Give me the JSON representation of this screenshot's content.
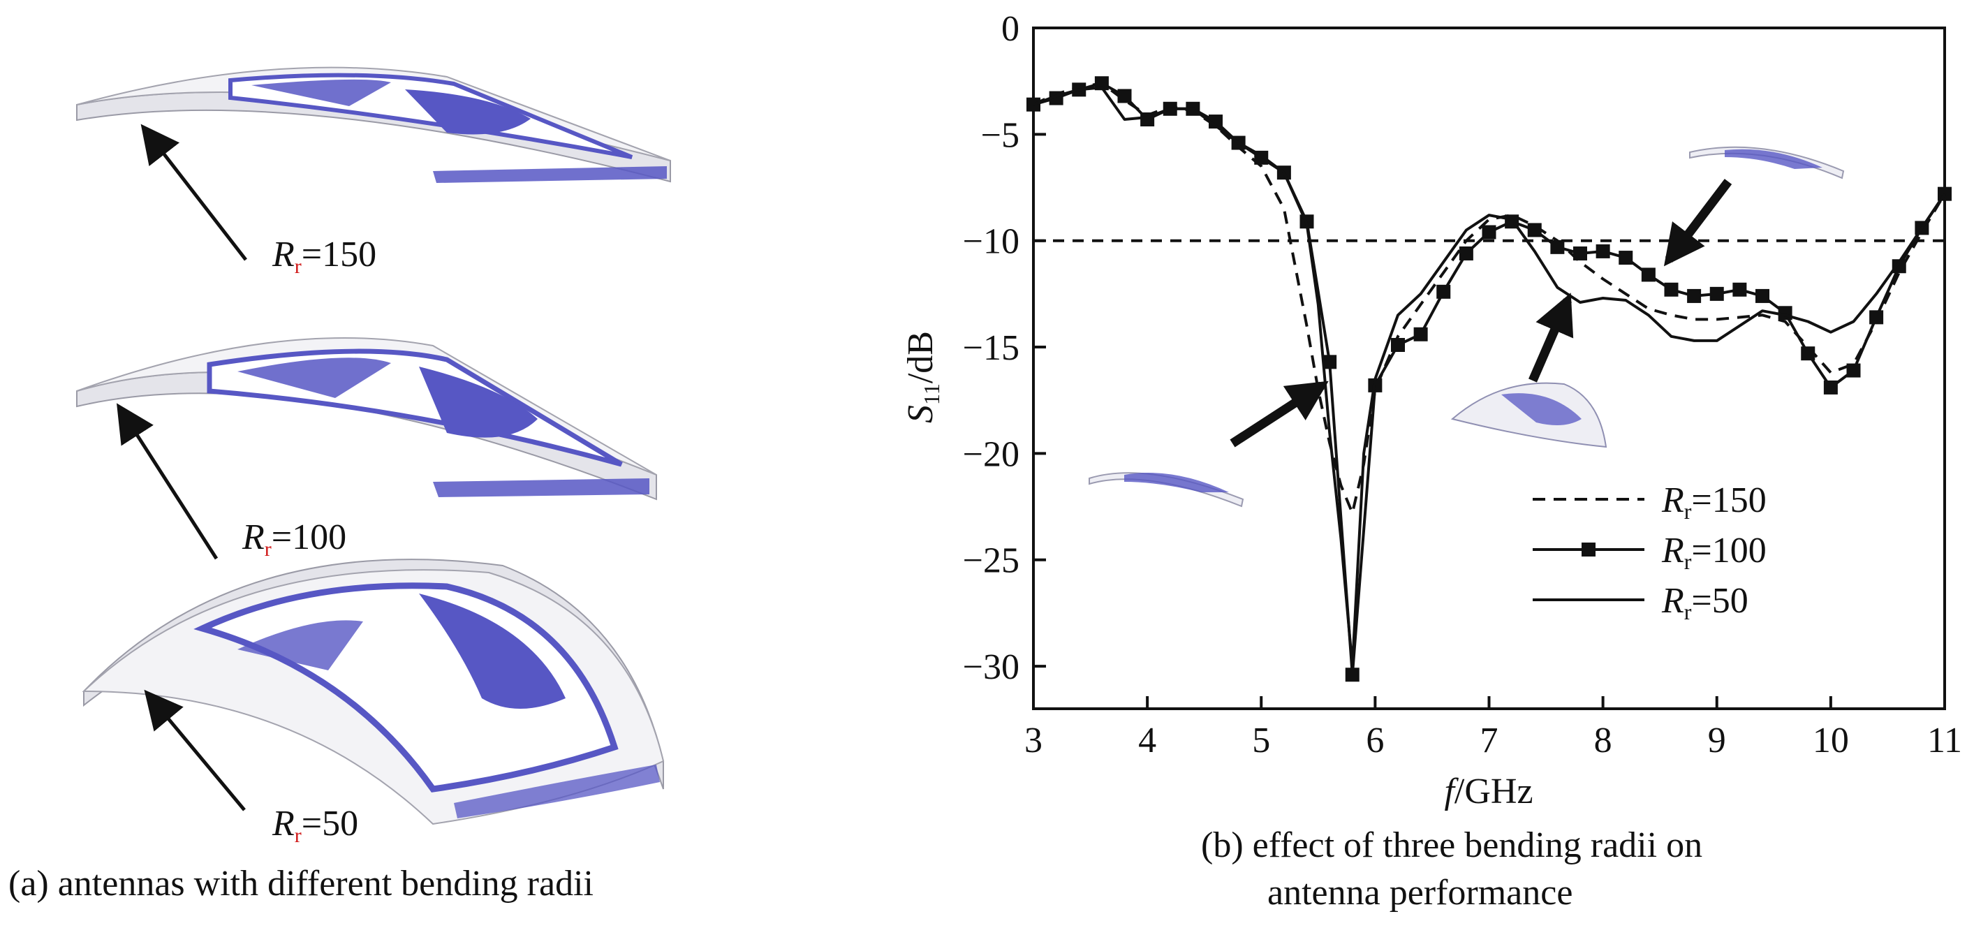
{
  "panel_a": {
    "caption": "(a) antennas with different bending radii",
    "labels": [
      {
        "symbol": "R",
        "sub": "r",
        "value": "=150"
      },
      {
        "symbol": "R",
        "sub": "r",
        "value": "=100"
      },
      {
        "symbol": "R",
        "sub": "r",
        "value": "=50"
      }
    ]
  },
  "panel_b": {
    "caption_line1": "(b) effect of three bending radii on",
    "caption_line2": "antenna performance"
  },
  "colors": {
    "antenna_blue": "#5757c4",
    "substrate": "#f1f1f4",
    "ink": "#111111",
    "subscript_red": "#d01818"
  },
  "chart_data": {
    "type": "line",
    "xlabel": "f/GHz",
    "ylabel": "S11/dB",
    "xlim": [
      3,
      11
    ],
    "ylim": [
      -32,
      0
    ],
    "xticks": [
      3,
      4,
      5,
      6,
      7,
      8,
      9,
      10,
      11
    ],
    "yticks": [
      0,
      -5,
      -10,
      -15,
      -20,
      -25,
      -30
    ],
    "reference_line": {
      "y": -10,
      "style": "dashed"
    },
    "legend_position": "lower-right",
    "series": [
      {
        "name": "Rr=150",
        "legend_symbol": "R",
        "legend_sub": "r",
        "legend_value": "=150",
        "style": "dashed",
        "x": [
          3.0,
          3.2,
          3.4,
          3.6,
          3.8,
          4.0,
          4.2,
          4.4,
          4.6,
          4.8,
          5.0,
          5.2,
          5.4,
          5.5,
          5.6,
          5.7,
          5.8,
          5.9,
          6.0,
          6.2,
          6.4,
          6.6,
          6.8,
          7.0,
          7.2,
          7.4,
          7.6,
          7.8,
          8.0,
          8.2,
          8.4,
          8.6,
          8.8,
          9.0,
          9.2,
          9.4,
          9.6,
          9.8,
          10.0,
          10.2,
          10.4,
          10.6,
          10.8,
          11.0
        ],
        "y": [
          -3.6,
          -3.1,
          -2.8,
          -2.6,
          -3.4,
          -4.1,
          -3.7,
          -3.9,
          -4.6,
          -5.6,
          -6.5,
          -8.5,
          -14.0,
          -17.0,
          -19.5,
          -21.5,
          -22.8,
          -20.5,
          -17.0,
          -14.5,
          -13.0,
          -11.5,
          -10.0,
          -9.0,
          -8.8,
          -9.3,
          -10.0,
          -11.0,
          -11.8,
          -12.5,
          -13.2,
          -13.5,
          -13.7,
          -13.7,
          -13.6,
          -13.5,
          -13.8,
          -15.0,
          -16.2,
          -15.8,
          -13.8,
          -11.5,
          -9.6,
          -7.8
        ]
      },
      {
        "name": "Rr=100",
        "legend_symbol": "R",
        "legend_sub": "r",
        "legend_value": "=100",
        "style": "line-square",
        "x": [
          3.0,
          3.2,
          3.4,
          3.6,
          3.8,
          4.0,
          4.2,
          4.4,
          4.6,
          4.8,
          5.0,
          5.2,
          5.4,
          5.6,
          5.8,
          6.0,
          6.2,
          6.4,
          6.6,
          6.8,
          7.0,
          7.2,
          7.4,
          7.6,
          7.8,
          8.0,
          8.2,
          8.4,
          8.6,
          8.8,
          9.0,
          9.2,
          9.4,
          9.6,
          9.8,
          10.0,
          10.2,
          10.4,
          10.6,
          10.8,
          11.0
        ],
        "y": [
          -3.6,
          -3.3,
          -2.9,
          -2.6,
          -3.2,
          -4.3,
          -3.8,
          -3.8,
          -4.4,
          -5.4,
          -6.1,
          -6.8,
          -9.1,
          -15.7,
          -30.4,
          -16.8,
          -14.9,
          -14.4,
          -12.4,
          -10.6,
          -9.6,
          -9.1,
          -9.5,
          -10.3,
          -10.6,
          -10.5,
          -10.8,
          -11.6,
          -12.3,
          -12.6,
          -12.5,
          -12.3,
          -12.6,
          -13.4,
          -15.3,
          -16.9,
          -16.1,
          -13.6,
          -11.2,
          -9.4,
          -7.8
        ]
      },
      {
        "name": "Rr=50",
        "legend_symbol": "R",
        "legend_sub": "r",
        "legend_value": "=50",
        "style": "solid",
        "x": [
          3.0,
          3.2,
          3.4,
          3.6,
          3.8,
          4.0,
          4.2,
          4.4,
          4.6,
          4.8,
          5.0,
          5.2,
          5.4,
          5.5,
          5.6,
          5.7,
          5.8,
          5.9,
          6.0,
          6.2,
          6.4,
          6.6,
          6.8,
          7.0,
          7.2,
          7.4,
          7.6,
          7.8,
          8.0,
          8.2,
          8.4,
          8.6,
          8.8,
          9.0,
          9.2,
          9.4,
          9.6,
          9.8,
          10.0,
          10.2,
          10.4,
          10.6,
          10.8,
          11.0
        ],
        "y": [
          -3.6,
          -3.2,
          -2.9,
          -2.8,
          -4.3,
          -4.2,
          -3.8,
          -3.8,
          -4.6,
          -5.4,
          -6.0,
          -6.8,
          -9.2,
          -13.0,
          -19.0,
          -24.0,
          -30.0,
          -20.0,
          -16.5,
          -13.5,
          -12.5,
          -11.0,
          -9.5,
          -8.8,
          -9.0,
          -10.5,
          -12.2,
          -12.9,
          -12.7,
          -12.8,
          -13.5,
          -14.5,
          -14.7,
          -14.7,
          -14.0,
          -13.3,
          -13.5,
          -13.8,
          -14.3,
          -13.8,
          -12.5,
          -11.0,
          -9.4,
          -7.8
        ]
      }
    ]
  }
}
